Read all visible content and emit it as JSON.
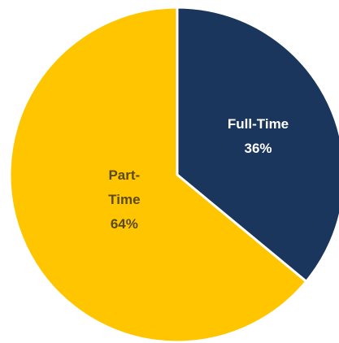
{
  "chart_data": {
    "type": "pie",
    "categories": [
      "Full-Time",
      "Part-Time"
    ],
    "values": [
      36,
      64
    ],
    "value_labels": [
      "36%",
      "64%"
    ],
    "colors": [
      "#1b365d",
      "#ffc600"
    ]
  }
}
